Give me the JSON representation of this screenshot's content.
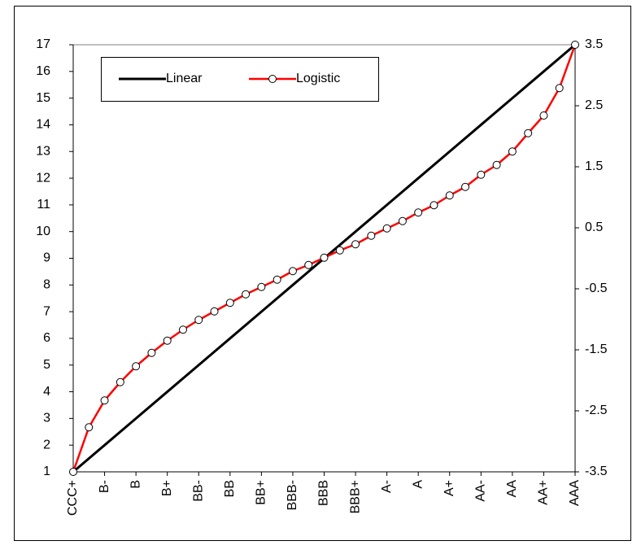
{
  "chart_data": {
    "type": "line",
    "xlim": [
      1,
      17
    ],
    "ylim": [
      1,
      17
    ],
    "y2lim": [
      -3.5,
      3.5
    ],
    "xticks": [
      {
        "value": 1,
        "label": "CCC+"
      },
      {
        "value": 2,
        "label": "B-"
      },
      {
        "value": 3,
        "label": "B"
      },
      {
        "value": 4,
        "label": "B+"
      },
      {
        "value": 5,
        "label": "BB-"
      },
      {
        "value": 6,
        "label": "BB"
      },
      {
        "value": 7,
        "label": "BB+"
      },
      {
        "value": 8,
        "label": "BBB-"
      },
      {
        "value": 9,
        "label": "BBB"
      },
      {
        "value": 10,
        "label": "BBB+"
      },
      {
        "value": 11,
        "label": "A-"
      },
      {
        "value": 12,
        "label": "A"
      },
      {
        "value": 13,
        "label": "A+"
      },
      {
        "value": 14,
        "label": "AA-"
      },
      {
        "value": 15,
        "label": "AA"
      },
      {
        "value": 16,
        "label": "AA+"
      },
      {
        "value": 17,
        "label": "AAA"
      }
    ],
    "yticks": [
      1,
      2,
      3,
      4,
      5,
      6,
      7,
      8,
      9,
      10,
      11,
      12,
      13,
      14,
      15,
      16,
      17
    ],
    "y2ticks": [
      -3.5,
      -2.5,
      -1.5,
      -0.5,
      0.5,
      1.5,
      2.5,
      3.5
    ],
    "grid": false,
    "legend": "upper left",
    "series": [
      {
        "name": "Linear",
        "color": "#000000",
        "x": [
          1,
          2,
          3,
          4,
          5,
          6,
          7,
          8,
          9,
          10,
          11,
          12,
          13,
          14,
          15,
          16,
          17
        ],
        "values": [
          1,
          2,
          3,
          4,
          5,
          6,
          7,
          8,
          9,
          10,
          11,
          12,
          13,
          14,
          15,
          16,
          17
        ]
      },
      {
        "name": "Logistic",
        "color": "#ff0000",
        "axis": "y2",
        "marker": true,
        "x": [
          1,
          1.5,
          2,
          2.5,
          3,
          3.5,
          4,
          4.5,
          5,
          5.5,
          6,
          6.5,
          7,
          7.5,
          8,
          8.5,
          9,
          9.5,
          10,
          10.5,
          11,
          11.5,
          12,
          12.5,
          13,
          13.5,
          14,
          14.5,
          15,
          15.5,
          16,
          16.5,
          17
        ],
        "values": [
          -3.5,
          -2.77,
          -2.33,
          -2.03,
          -1.77,
          -1.55,
          -1.35,
          -1.17,
          -1.01,
          -0.87,
          -0.73,
          -0.59,
          -0.47,
          -0.35,
          -0.21,
          -0.11,
          0.01,
          0.13,
          0.23,
          0.37,
          0.49,
          0.61,
          0.75,
          0.87,
          1.03,
          1.17,
          1.37,
          1.53,
          1.75,
          2.05,
          2.34,
          2.79,
          3.5
        ]
      }
    ]
  }
}
